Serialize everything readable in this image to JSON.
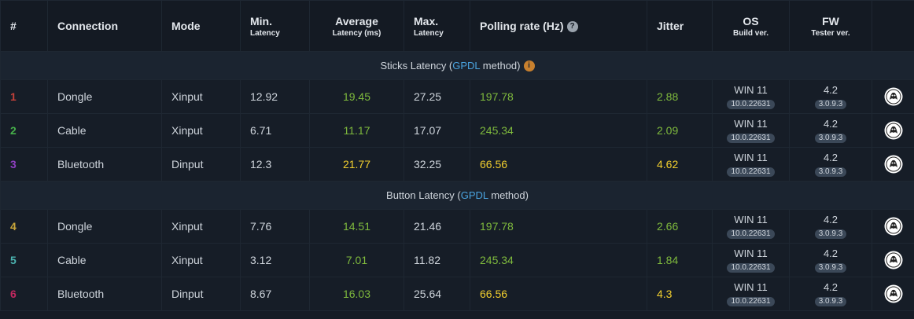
{
  "header": {
    "columns": [
      {
        "title": "#"
      },
      {
        "title": "Connection"
      },
      {
        "title": "Mode"
      },
      {
        "title": "Min.",
        "sub": "Latency"
      },
      {
        "title": "Average",
        "sub": "Latency (ms)"
      },
      {
        "title": "Max.",
        "sub": "Latency"
      },
      {
        "title": "Polling rate (Hz)"
      },
      {
        "title": "Jitter"
      },
      {
        "title": "OS",
        "sub": "Build ver."
      },
      {
        "title": "FW",
        "sub": "Tester ver."
      }
    ]
  },
  "sections": [
    {
      "prefix": "Sticks Latency (",
      "link": "GPDL",
      "suffix": " method)",
      "rows": [
        {
          "num": 1,
          "connection": "Dongle",
          "mode": "Xinput",
          "min": 12.92,
          "avg": 19.45,
          "max": 27.25,
          "polling": 197.78,
          "jitter": 2.88,
          "os": "WIN 11",
          "build": "10.0.22631",
          "fw": 4.2,
          "tester": "3.0.9.3"
        },
        {
          "num": 2,
          "connection": "Cable",
          "mode": "Xinput",
          "min": 6.71,
          "avg": 11.17,
          "max": 17.07,
          "polling": 245.34,
          "jitter": 2.09,
          "os": "WIN 11",
          "build": "10.0.22631",
          "fw": 4.2,
          "tester": "3.0.9.3"
        },
        {
          "num": 3,
          "connection": "Bluetooth",
          "mode": "Dinput",
          "min": 12.3,
          "avg": 21.77,
          "max": 32.25,
          "polling": 66.56,
          "jitter": 4.62,
          "os": "WIN 11",
          "build": "10.0.22631",
          "fw": 4.2,
          "tester": "3.0.9.3"
        }
      ]
    },
    {
      "prefix": "Button Latency (",
      "link": "GPDL",
      "suffix": " method)",
      "rows": [
        {
          "num": 4,
          "connection": "Dongle",
          "mode": "Xinput",
          "min": 7.76,
          "avg": 14.51,
          "max": 21.46,
          "polling": 197.78,
          "jitter": 2.66,
          "os": "WIN 11",
          "build": "10.0.22631",
          "fw": 4.2,
          "tester": "3.0.9.3"
        },
        {
          "num": 5,
          "connection": "Cable",
          "mode": "Xinput",
          "min": 3.12,
          "avg": 7.01,
          "max": 11.82,
          "polling": 245.34,
          "jitter": 1.84,
          "os": "WIN 11",
          "build": "10.0.22631",
          "fw": 4.2,
          "tester": "3.0.9.3"
        },
        {
          "num": 6,
          "connection": "Bluetooth",
          "mode": "Dinput",
          "min": 8.67,
          "avg": 16.03,
          "max": 25.64,
          "polling": 66.56,
          "jitter": 4.3,
          "os": "WIN 11",
          "build": "10.0.22631",
          "fw": 4.2,
          "tester": "3.0.9.3"
        }
      ]
    }
  ]
}
